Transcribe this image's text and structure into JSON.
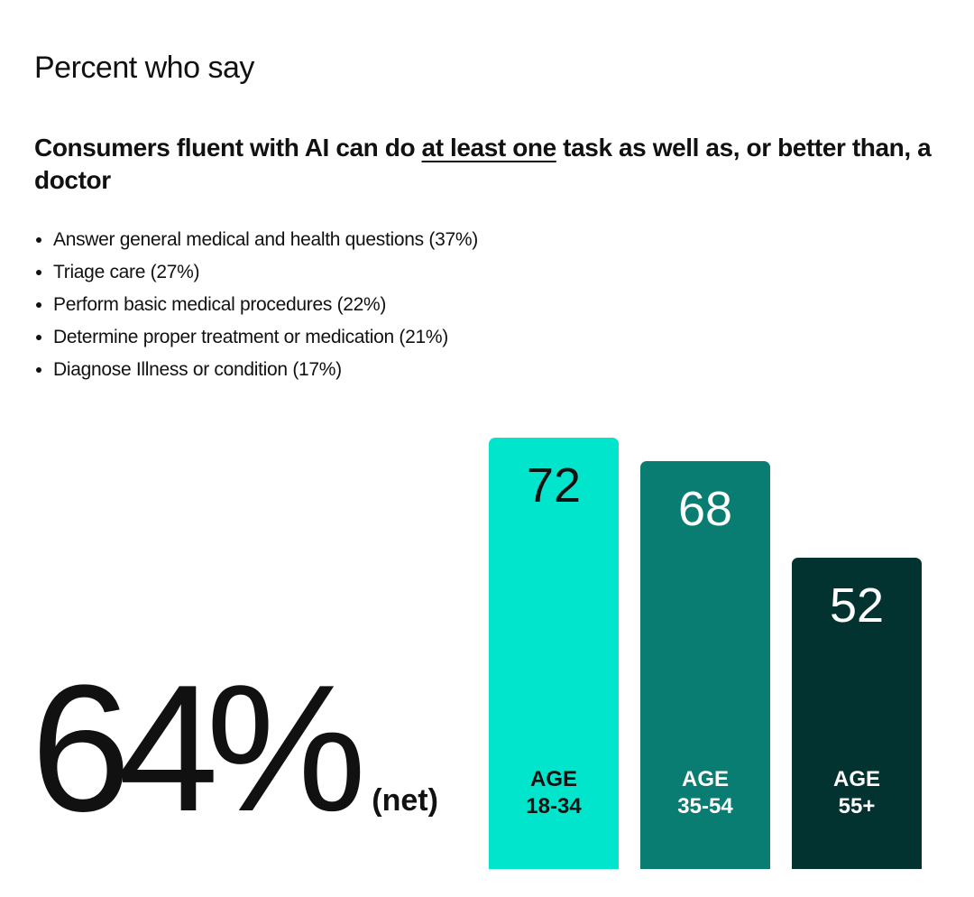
{
  "header": {
    "title": "Percent who say"
  },
  "headline": {
    "before": "Consumers fluent with AI can do ",
    "emphasis": "at least one",
    "after": " task as well as, or better than, a doctor"
  },
  "bullets": [
    "Answer general medical and health questions (37%)",
    "Triage care (27%)",
    "Perform basic medical procedures (22%)",
    "Determine proper treatment or medication (21%)",
    "Diagnose Illness or condition (17%)"
  ],
  "stat": {
    "value": "64%",
    "label": "(net)"
  },
  "chart_data": {
    "type": "bar",
    "categories": [
      "AGE\n18-34",
      "AGE\n35-54",
      "AGE\n55+"
    ],
    "values": [
      72,
      68,
      52
    ],
    "colors": [
      "#00e5cc",
      "#0a7d72",
      "#033331"
    ],
    "label_colors": [
      "#111111",
      "#ffffff",
      "#ffffff"
    ]
  }
}
